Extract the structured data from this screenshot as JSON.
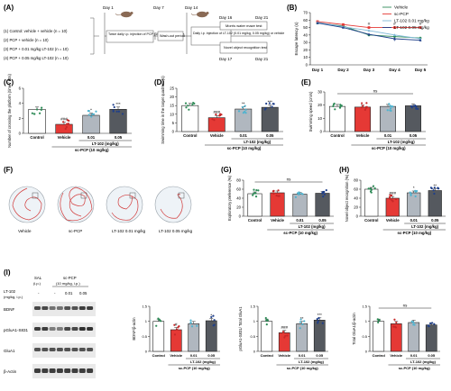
{
  "panels": {
    "A": {
      "letter": "(A)",
      "groups": [
        "(1) Control: vehicle + vehicle (n = 10)",
        "(2) PCP + vehicle (n = 10)",
        "(3) PCP + 0.01 mg/kg LT-102 (n = 10)",
        "(4) PCP + 0.05 mg/kg LT-102 (n = 10)"
      ],
      "days_top": [
        "Day 1",
        "Day 7",
        "Day 14",
        "Day 16",
        "Day 21"
      ],
      "days_bottom": [
        "Day 17",
        "Day 21"
      ],
      "box1": "Twice daily i.p. injection of PCP (10 mg/kg) or vehicle",
      "box2": "Wash-out period",
      "box3": "Daily i.p. injection of LT-102 (0.01 mg/kg, 0.05 mg/kg) or vehicle",
      "test1": "Morris water maze test",
      "test2": "Novel object recognition test"
    },
    "C": {
      "letter": "(C)"
    },
    "D": {
      "letter": "(D)"
    },
    "E": {
      "letter": "(E)"
    },
    "F": {
      "letter": "(F)",
      "labels": [
        "Vehicle",
        "sc-PCP",
        "LT-102 0.01 mg/kg",
        "LT-102 0.05 mg/kg"
      ]
    },
    "G": {
      "letter": "(G)"
    },
    "H": {
      "letter": "(H)"
    },
    "I": {
      "letter": "(I)",
      "blot_header": {
        "sal": "SAL",
        "sal_route": "(i.p.)",
        "pcp": "sc-PCP",
        "pcp_dose": "(10 mg/kg, i.p.)",
        "lt": "LT-102",
        "lt_unit": "(mg/kg, i.p.)",
        "doses": [
          "-",
          "-",
          "0.01",
          "0.05"
        ]
      },
      "proteins": [
        "BDNF",
        "pGluA1-S831",
        "GluA1",
        "β-Actin"
      ]
    }
  },
  "common": {
    "groups": [
      "Control",
      "Vehicle",
      "0.01",
      "0.05"
    ],
    "lt_label": "LT-102 (mg/kg)",
    "pcp_label": "sc-PCP (10 mg/kg)",
    "colors": {
      "control": "#ffffff",
      "vehicle": "#e53935",
      "lt01": "#b0b7bf",
      "lt05": "#55595f",
      "dot_control": "#2e8b57",
      "dot_vehicle": "#c62828",
      "dot_lt01": "#4fb3cf",
      "dot_lt05": "#1f3f8a"
    }
  },
  "chart_data": [
    {
      "id": "B",
      "letter": "(B)",
      "type": "line",
      "ylabel": "Escape latency (s)",
      "x": [
        "Day 1",
        "Day 2",
        "Day 3",
        "Day 4",
        "Day 5"
      ],
      "ylim": [
        0,
        70
      ],
      "yticks": [
        0,
        10,
        20,
        30,
        40,
        50,
        60,
        70
      ],
      "legend_position": "top-right",
      "series": [
        {
          "name": "Vehicle",
          "values": [
            56,
            52,
            40,
            38,
            36
          ]
        },
        {
          "name": "sc-PCP",
          "values": [
            58,
            54,
            50,
            50,
            50
          ]
        },
        {
          "name": "LT-102 0.01 mg/kg",
          "values": [
            57,
            51,
            46,
            40,
            35
          ]
        },
        {
          "name": "LT-102 0.05 mg/kg",
          "values": [
            56,
            50,
            41,
            35,
            33
          ]
        }
      ],
      "annotations": [
        "#",
        "#",
        "#",
        "*",
        "*",
        "*",
        "*"
      ]
    },
    {
      "id": "C",
      "letter": "(C)",
      "type": "bar",
      "ylabel": "Number of crossing the platform (time / 60s)",
      "categories": [
        "Control",
        "Vehicle",
        "0.01",
        "0.05"
      ],
      "values": [
        3.2,
        1.2,
        2.4,
        3.2
      ],
      "ylim": [
        0,
        6
      ],
      "yticks": [
        0,
        2,
        4,
        6
      ],
      "marks": [
        "",
        "###",
        "*",
        "***"
      ]
    },
    {
      "id": "D",
      "letter": "(D)",
      "type": "bar",
      "ylabel": "Swimming time in the target quadrant (s)",
      "categories": [
        "Control",
        "Vehicle",
        "0.01",
        "0.05"
      ],
      "values": [
        15,
        8,
        13,
        14
      ],
      "ylim": [
        0,
        25
      ],
      "yticks": [
        0,
        5,
        10,
        15,
        20,
        25
      ],
      "marks": [
        "",
        "###",
        "**",
        "***"
      ]
    },
    {
      "id": "E",
      "letter": "(E)",
      "type": "bar",
      "ylabel": "Swimming speed (cm/s)",
      "categories": [
        "Control",
        "Vehicle",
        "0.01",
        "0.05"
      ],
      "values": [
        19,
        18.5,
        19,
        19.5
      ],
      "ylim": [
        0,
        30
      ],
      "yticks": [
        0,
        10,
        20,
        30
      ],
      "marks": [
        "",
        "",
        "",
        ""
      ],
      "ns": "ns"
    },
    {
      "id": "G",
      "letter": "(G)",
      "type": "bar",
      "ylabel": "Exploratory preference (%)",
      "categories": [
        "Control",
        "Vehicle",
        "0.01",
        "0.05"
      ],
      "values": [
        50,
        52,
        49,
        51
      ],
      "ylim": [
        0,
        80
      ],
      "yticks": [
        0,
        20,
        40,
        60,
        80
      ],
      "marks": [
        "",
        "",
        "",
        ""
      ],
      "ns": "ns"
    },
    {
      "id": "H",
      "letter": "(H)",
      "type": "bar",
      "ylabel": "Novel object recognition (%)",
      "categories": [
        "Control",
        "Vehicle",
        "0.01",
        "0.05"
      ],
      "values": [
        60,
        40,
        52,
        57
      ],
      "ylim": [
        0,
        80
      ],
      "yticks": [
        0,
        20,
        40,
        60,
        80
      ],
      "marks": [
        "",
        "###",
        "*",
        "**"
      ]
    },
    {
      "id": "I1",
      "type": "bar",
      "ylabel": "BDNF/β-actin",
      "categories": [
        "Control",
        "Vehicle",
        "0.01",
        "0.05"
      ],
      "values": [
        1.0,
        0.72,
        0.92,
        1.02
      ],
      "ylim": [
        0,
        1.5
      ],
      "yticks": [
        0,
        0.5,
        1.0,
        1.5
      ],
      "marks": [
        "",
        "#",
        "",
        "*"
      ]
    },
    {
      "id": "I2",
      "type": "bar",
      "ylabel": "pGluA1-S831/ Total GluA1",
      "categories": [
        "Control",
        "Vehicle",
        "0.01",
        "0.05"
      ],
      "values": [
        1.0,
        0.62,
        0.92,
        1.04
      ],
      "ylim": [
        0,
        1.5
      ],
      "yticks": [
        0,
        0.5,
        1.0,
        1.5
      ],
      "marks": [
        "",
        "###",
        "**",
        "***"
      ]
    },
    {
      "id": "I3",
      "type": "bar",
      "ylabel": "Total GluA1/β-actin",
      "categories": [
        "Control",
        "Vehicle",
        "0.01",
        "0.05"
      ],
      "values": [
        1.0,
        0.92,
        0.96,
        0.88
      ],
      "ylim": [
        0,
        1.5
      ],
      "yticks": [
        0,
        0.5,
        1.0,
        1.5
      ],
      "marks": [
        "",
        "",
        "",
        ""
      ],
      "ns": "ns"
    }
  ]
}
